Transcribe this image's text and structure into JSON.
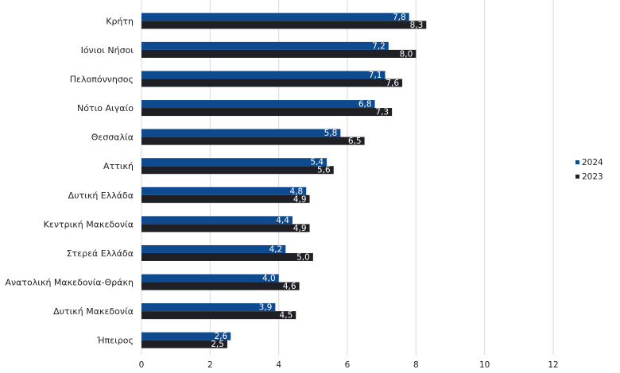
{
  "chart_data": {
    "type": "bar",
    "orientation": "horizontal",
    "title": "",
    "xlabel": "",
    "ylabel": "",
    "xlim": [
      0,
      12
    ],
    "x_ticks": [
      "0",
      "2",
      "4",
      "6",
      "8",
      "10",
      "12"
    ],
    "grid": "vertical",
    "legend_position": "right",
    "categories": [
      "Κρήτη",
      "Ιόνιοι Νήσοι",
      "Πελοπόννησος",
      "Νότιο Αιγαίο",
      "Θεσσαλία",
      "Αττική",
      "Δυτική Ελλάδα",
      "Κεντρική Μακεδονία",
      "Στερεά Ελλάδα",
      "Ανατολική Μακεδονία-Θράκη",
      "Δυτική Μακεδονία",
      "Ήπειρος"
    ],
    "series": [
      {
        "name": "2024",
        "color": "#0d4a8f",
        "values": [
          7.8,
          7.2,
          7.1,
          6.8,
          5.8,
          5.4,
          4.8,
          4.4,
          4.2,
          4.0,
          3.9,
          2.6
        ],
        "labels": [
          "7,8",
          "7,2",
          "7,1",
          "6,8",
          "5,8",
          "5,4",
          "4,8",
          "4,4",
          "4,2",
          "4,0",
          "3,9",
          "2,6"
        ]
      },
      {
        "name": "2023",
        "color": "#1f1f26",
        "values": [
          8.3,
          8.0,
          7.6,
          7.3,
          6.5,
          5.6,
          4.9,
          4.9,
          5.0,
          4.6,
          4.5,
          2.5
        ],
        "labels": [
          "8,3",
          "8,0",
          "7,6",
          "7,3",
          "6,5",
          "5,6",
          "4,9",
          "4,9",
          "5,0",
          "4,6",
          "4,5",
          "2,5"
        ]
      }
    ]
  }
}
